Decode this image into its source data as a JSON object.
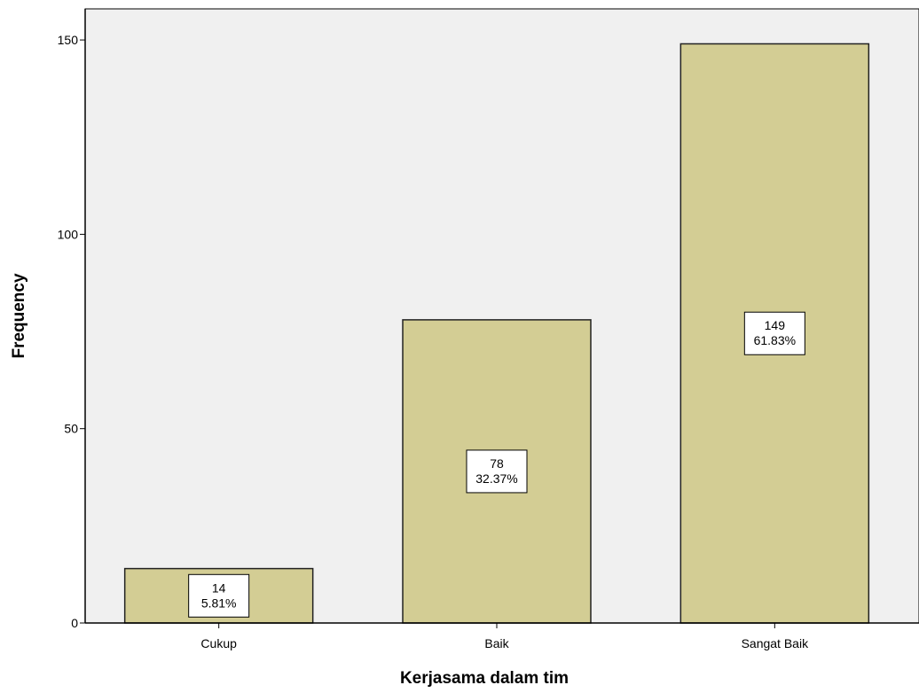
{
  "chart_data": {
    "type": "bar",
    "categories": [
      "Cukup",
      "Baik",
      "Sangat Baik"
    ],
    "values": [
      14,
      78,
      149
    ],
    "percent_labels": [
      "5.81%",
      "32.37%",
      "61.83%"
    ],
    "xlabel": "Kerjasama dalam tim",
    "ylabel": "Frequency",
    "ylim": [
      0,
      158
    ],
    "yticks": [
      0,
      50,
      100,
      150
    ],
    "grid": false,
    "colors": {
      "bar_fill": "#d3cd94",
      "bar_stroke": "#222222",
      "plot_background": "#f0f0f0"
    }
  }
}
